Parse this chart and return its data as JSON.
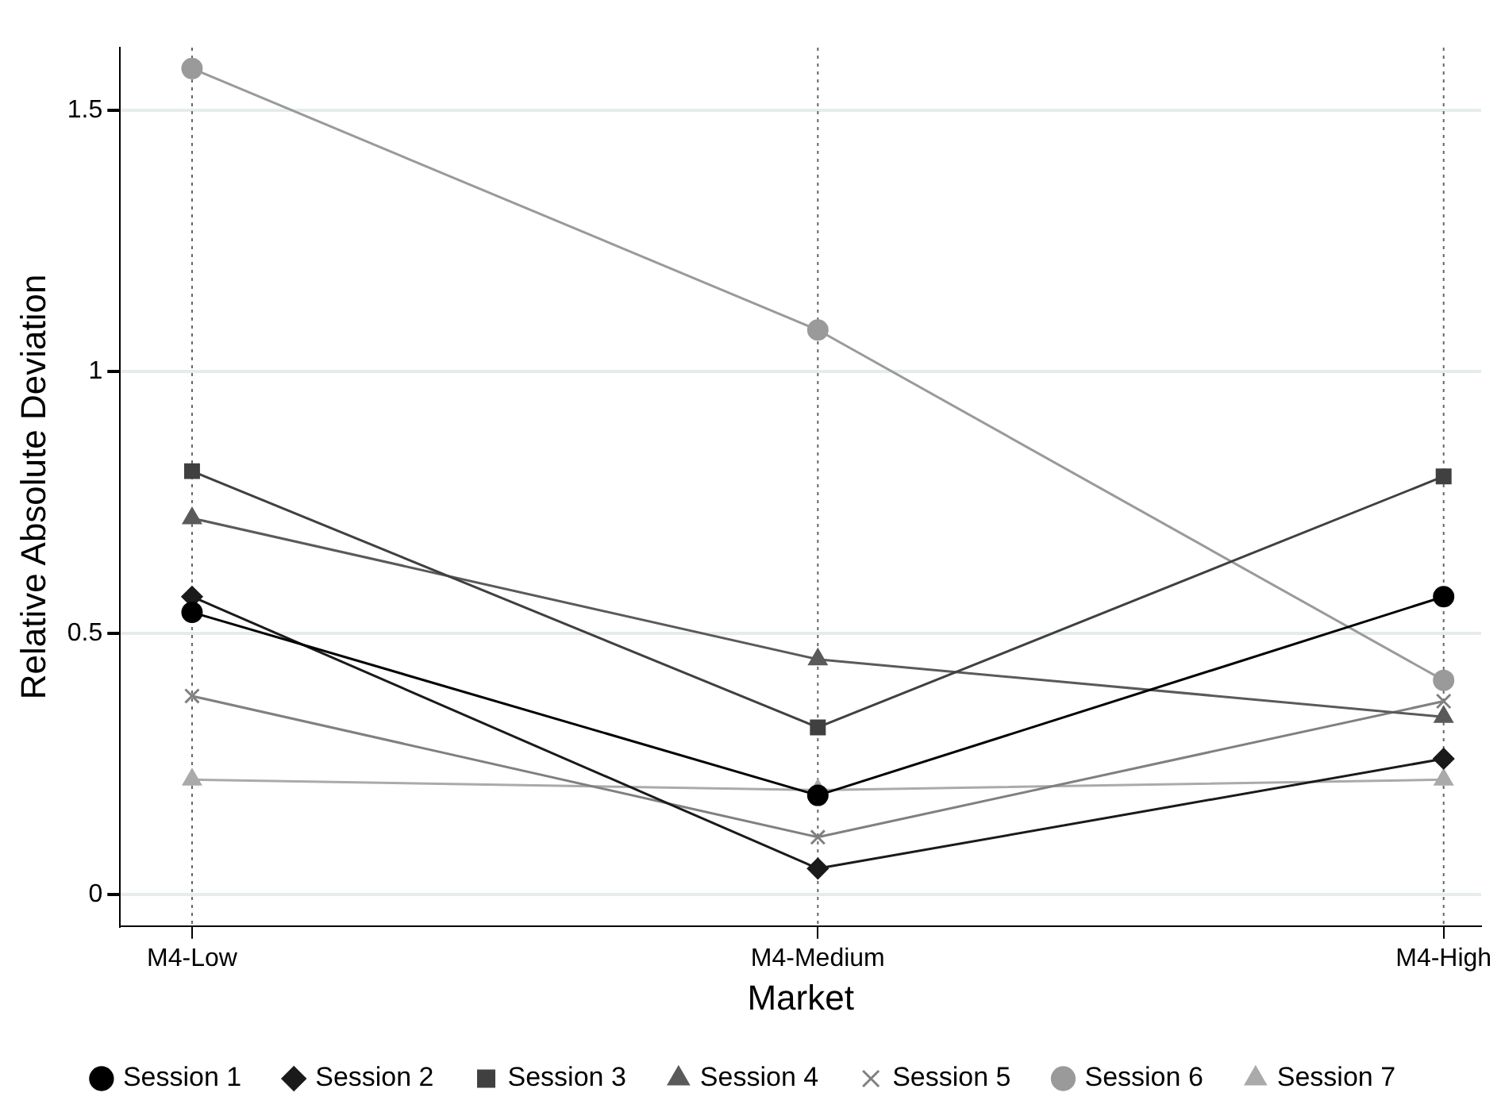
{
  "chart_data": {
    "type": "line",
    "xlabel": "Market",
    "ylabel": "Relative Absolute Deviation",
    "categories": [
      "M4-Low",
      "M4-Medium",
      "M4-High"
    ],
    "ylim": [
      -0.06,
      1.62
    ],
    "yticks": [
      0,
      0.5,
      1,
      1.5
    ],
    "grid": true,
    "legend": "bottom",
    "series": [
      {
        "name": "Session 1",
        "color": "#000000",
        "marker": "circle",
        "values": [
          0.54,
          0.19,
          0.57
        ]
      },
      {
        "name": "Session 2",
        "color": "#1a1a1a",
        "marker": "diamond",
        "values": [
          0.57,
          0.05,
          0.26
        ]
      },
      {
        "name": "Session 3",
        "color": "#404040",
        "marker": "square",
        "values": [
          0.81,
          0.32,
          0.8
        ]
      },
      {
        "name": "Session 4",
        "color": "#5a5a5a",
        "marker": "triangle",
        "values": [
          0.72,
          0.45,
          0.34
        ]
      },
      {
        "name": "Session 5",
        "color": "#808080",
        "marker": "cross",
        "values": [
          0.38,
          0.11,
          0.37
        ]
      },
      {
        "name": "Session 6",
        "color": "#9a9a9a",
        "marker": "circle",
        "values": [
          1.58,
          1.08,
          0.41
        ]
      },
      {
        "name": "Session 7",
        "color": "#aaaaaa",
        "marker": "triangle",
        "values": [
          0.22,
          0.2,
          0.22
        ]
      }
    ]
  }
}
